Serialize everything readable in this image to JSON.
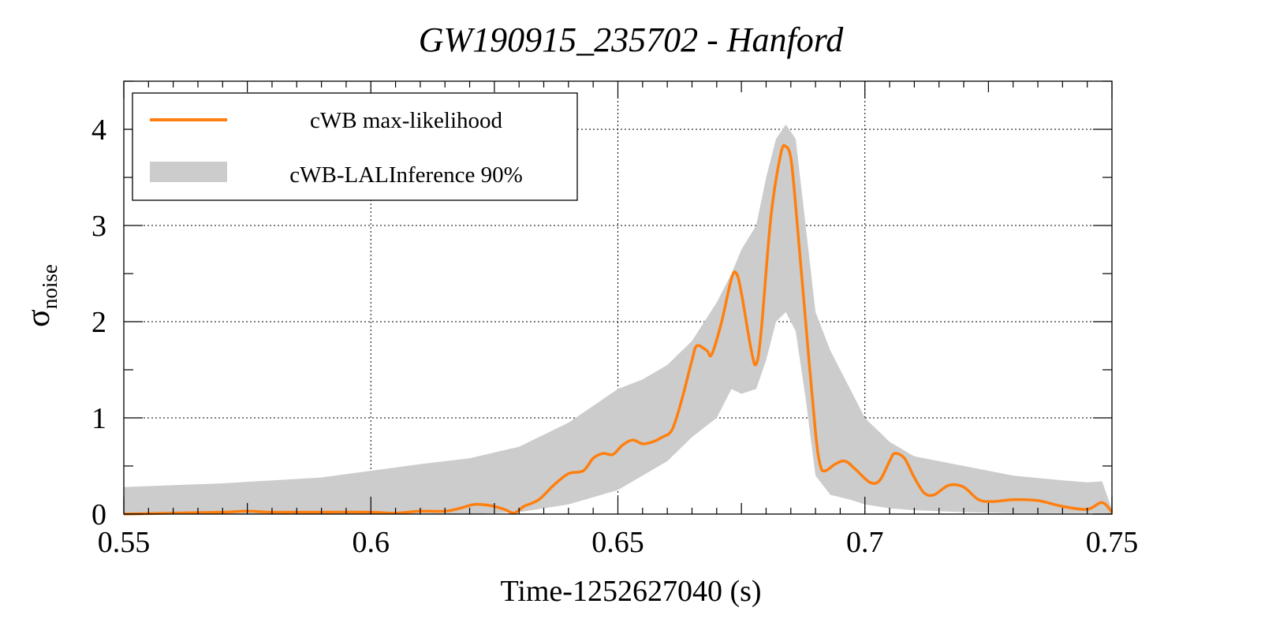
{
  "chart_data": {
    "type": "line",
    "title": "GW190915_235702 - Hanford",
    "xlabel": "Time-1252627040 (s)",
    "ylabel_main": "σ",
    "ylabel_sub": "noise",
    "xlim": [
      0.55,
      0.75
    ],
    "ylim": [
      0,
      4.5
    ],
    "x_ticks": [
      0.55,
      0.6,
      0.65,
      0.7,
      0.75
    ],
    "x_tick_labels": [
      "0.55",
      "0.6",
      "0.65",
      "0.7",
      "0.75"
    ],
    "y_ticks": [
      0,
      1,
      2,
      3,
      4
    ],
    "y_tick_labels": [
      "0",
      "1",
      "2",
      "3",
      "4"
    ],
    "grid": true,
    "legend_position": "top-left",
    "colors": {
      "line": "#ff7f0e",
      "band": "#cccccc"
    },
    "series": [
      {
        "name": "cWB max-likelihood",
        "kind": "line",
        "x": [
          0.55,
          0.56,
          0.57,
          0.575,
          0.58,
          0.59,
          0.6,
          0.605,
          0.61,
          0.615,
          0.618,
          0.621,
          0.624,
          0.627,
          0.629,
          0.631,
          0.634,
          0.637,
          0.64,
          0.643,
          0.645,
          0.647,
          0.649,
          0.651,
          0.653,
          0.655,
          0.657,
          0.659,
          0.661,
          0.663,
          0.665,
          0.666,
          0.668,
          0.669,
          0.671,
          0.673,
          0.674,
          0.675,
          0.677,
          0.678,
          0.679,
          0.681,
          0.683,
          0.684,
          0.685,
          0.686,
          0.688,
          0.69,
          0.691,
          0.692,
          0.694,
          0.696,
          0.698,
          0.701,
          0.703,
          0.705,
          0.706,
          0.708,
          0.71,
          0.712,
          0.714,
          0.717,
          0.72,
          0.723,
          0.726,
          0.73,
          0.735,
          0.74,
          0.745,
          0.748,
          0.75
        ],
        "y": [
          0.0,
          0.01,
          0.02,
          0.03,
          0.02,
          0.02,
          0.02,
          0.01,
          0.03,
          0.03,
          0.06,
          0.1,
          0.09,
          0.05,
          0.01,
          0.08,
          0.15,
          0.3,
          0.42,
          0.45,
          0.58,
          0.63,
          0.62,
          0.72,
          0.77,
          0.73,
          0.75,
          0.8,
          0.88,
          1.2,
          1.6,
          1.75,
          1.7,
          1.66,
          2.0,
          2.45,
          2.5,
          2.3,
          1.7,
          1.56,
          1.9,
          3.1,
          3.75,
          3.82,
          3.7,
          3.2,
          2.0,
          0.85,
          0.5,
          0.45,
          0.52,
          0.55,
          0.47,
          0.33,
          0.35,
          0.55,
          0.63,
          0.58,
          0.38,
          0.22,
          0.2,
          0.3,
          0.28,
          0.15,
          0.13,
          0.15,
          0.14,
          0.08,
          0.05,
          0.12,
          0.02
        ]
      },
      {
        "name": "cWB-LALInference 90%",
        "kind": "band",
        "x": [
          0.55,
          0.57,
          0.59,
          0.6,
          0.61,
          0.62,
          0.63,
          0.64,
          0.65,
          0.655,
          0.66,
          0.665,
          0.67,
          0.673,
          0.675,
          0.678,
          0.68,
          0.682,
          0.684,
          0.686,
          0.688,
          0.69,
          0.693,
          0.697,
          0.7,
          0.705,
          0.71,
          0.72,
          0.73,
          0.74,
          0.745,
          0.748,
          0.75
        ],
        "lower": [
          0.0,
          0.0,
          0.0,
          0.0,
          0.0,
          0.0,
          0.02,
          0.1,
          0.25,
          0.4,
          0.55,
          0.8,
          1.0,
          1.3,
          1.25,
          1.3,
          1.6,
          2.0,
          2.1,
          1.9,
          1.2,
          0.4,
          0.2,
          0.15,
          0.1,
          0.06,
          0.04,
          0.02,
          0.01,
          0.01,
          0.01,
          0.01,
          0.0
        ],
        "upper": [
          0.28,
          0.32,
          0.38,
          0.45,
          0.52,
          0.58,
          0.7,
          0.95,
          1.3,
          1.4,
          1.55,
          1.8,
          2.2,
          2.5,
          2.75,
          3.0,
          3.5,
          3.9,
          4.05,
          3.9,
          3.0,
          2.1,
          1.7,
          1.3,
          1.0,
          0.75,
          0.6,
          0.5,
          0.4,
          0.35,
          0.33,
          0.34,
          0.05
        ]
      }
    ]
  }
}
